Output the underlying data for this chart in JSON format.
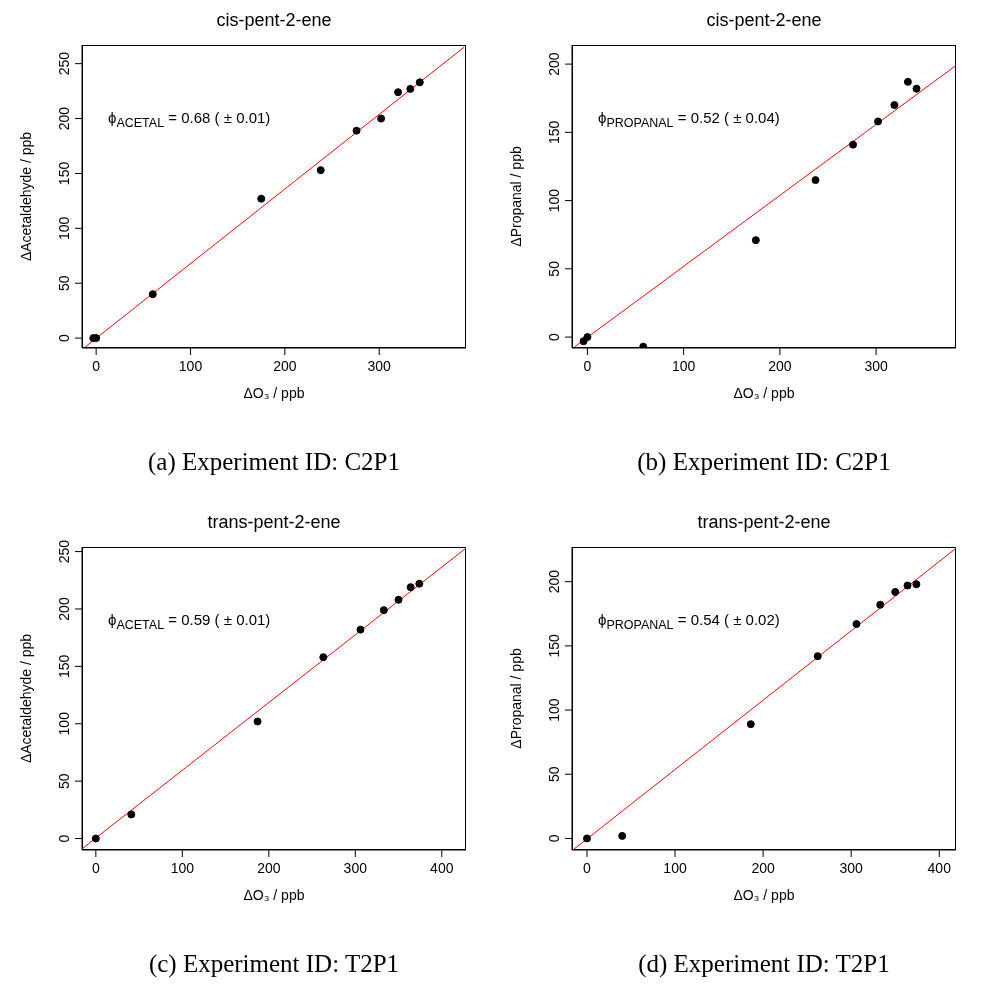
{
  "chart_data": [
    {
      "type": "scatter",
      "title": "cis-pent-2-ene",
      "xlabel": "ΔO₃ / ppb",
      "ylabel": "ΔAcetaldehyde / ppb",
      "xlim": [
        -15,
        392
      ],
      "xticks": [
        0,
        100,
        200,
        300
      ],
      "ylim": [
        -9,
        267
      ],
      "yticks": [
        0,
        50,
        100,
        150,
        200,
        250
      ],
      "annotations": [
        "ϕ$_{ACETAL}$ = 0.68 ( ± 0.01)",
        "(a) Experiment ID: C2P1"
      ],
      "series": [
        {
          "type": "scatter",
          "marker": "circle",
          "color": "#000000",
          "x": [
            -3,
            0,
            60,
            175,
            238,
            276,
            302,
            320,
            333,
            343
          ],
          "values": [
            0,
            0,
            40,
            127,
            153,
            189,
            200,
            224,
            227,
            233
          ]
        },
        {
          "type": "line",
          "marker": "none",
          "color": "#ff0000",
          "x": [
            -13,
            390
          ],
          "values": [
            -9,
            265
          ]
        }
      ]
    },
    {
      "type": "scatter",
      "title": "cis-pent-2-ene",
      "xlabel": "ΔO₃ / ppb",
      "ylabel": "ΔPropanal / ppb",
      "xlim": [
        -16,
        383
      ],
      "xticks": [
        0,
        100,
        200,
        300
      ],
      "ylim": [
        -8,
        214
      ],
      "yticks": [
        0,
        50,
        100,
        150,
        200
      ],
      "annotations": [
        "ϕ$_{PROPANAL}$ = 0.52 ( ± 0.04)",
        "(b) Experiment ID: C2P1"
      ],
      "series": [
        {
          "type": "scatter",
          "marker": "circle",
          "color": "#000000",
          "x": [
            -4,
            0,
            58,
            175,
            237,
            276,
            302,
            319,
            333,
            342
          ],
          "values": [
            -3,
            0,
            -7,
            71,
            115,
            141,
            158,
            170,
            187,
            182
          ]
        },
        {
          "type": "line",
          "marker": "none",
          "color": "#ff0000",
          "x": [
            -13,
            383
          ],
          "values": [
            -7,
            199
          ]
        }
      ]
    },
    {
      "type": "scatter",
      "title": "trans-pent-2-ene",
      "xlabel": "ΔO₃ / ppb",
      "ylabel": "ΔAcetaldehyde / ppb",
      "xlim": [
        -16,
        428
      ],
      "xticks": [
        0,
        100,
        200,
        300,
        400
      ],
      "ylim": [
        -10,
        254
      ],
      "yticks": [
        0,
        50,
        100,
        150,
        200,
        250
      ],
      "annotations": [
        "ϕ$_{ACETAL}$ = 0.59 ( ± 0.01)",
        "(c) Experiment ID: T2P1"
      ],
      "series": [
        {
          "type": "scatter",
          "marker": "circle",
          "color": "#000000",
          "x": [
            0,
            41,
            187,
            263,
            306,
            333,
            350,
            364,
            374
          ],
          "values": [
            0,
            21,
            102,
            158,
            182,
            199,
            208,
            219,
            222
          ]
        },
        {
          "type": "line",
          "marker": "none",
          "color": "#ff0000",
          "x": [
            -16,
            428
          ],
          "values": [
            -9,
            253
          ]
        }
      ]
    },
    {
      "type": "scatter",
      "title": "trans-pent-2-ene",
      "xlabel": "ΔO₃ / ppb",
      "ylabel": "ΔPropanal / ppb",
      "xlim": [
        -17,
        419
      ],
      "xticks": [
        0,
        100,
        200,
        300,
        400
      ],
      "ylim": [
        -9,
        227
      ],
      "yticks": [
        0,
        50,
        100,
        150,
        200
      ],
      "annotations": [
        "ϕ$_{PROPANAL}$ = 0.54 ( ± 0.02)",
        "(d) Experiment ID: T2P1"
      ],
      "series": [
        {
          "type": "scatter",
          "marker": "circle",
          "color": "#000000",
          "x": [
            0,
            40,
            186,
            262,
            306,
            333,
            350,
            364,
            374
          ],
          "values": [
            0,
            2,
            89,
            142,
            167,
            182,
            192,
            197,
            198
          ]
        },
        {
          "type": "line",
          "marker": "none",
          "color": "#ff0000",
          "x": [
            -16,
            419
          ],
          "values": [
            -9,
            226
          ]
        }
      ]
    }
  ]
}
